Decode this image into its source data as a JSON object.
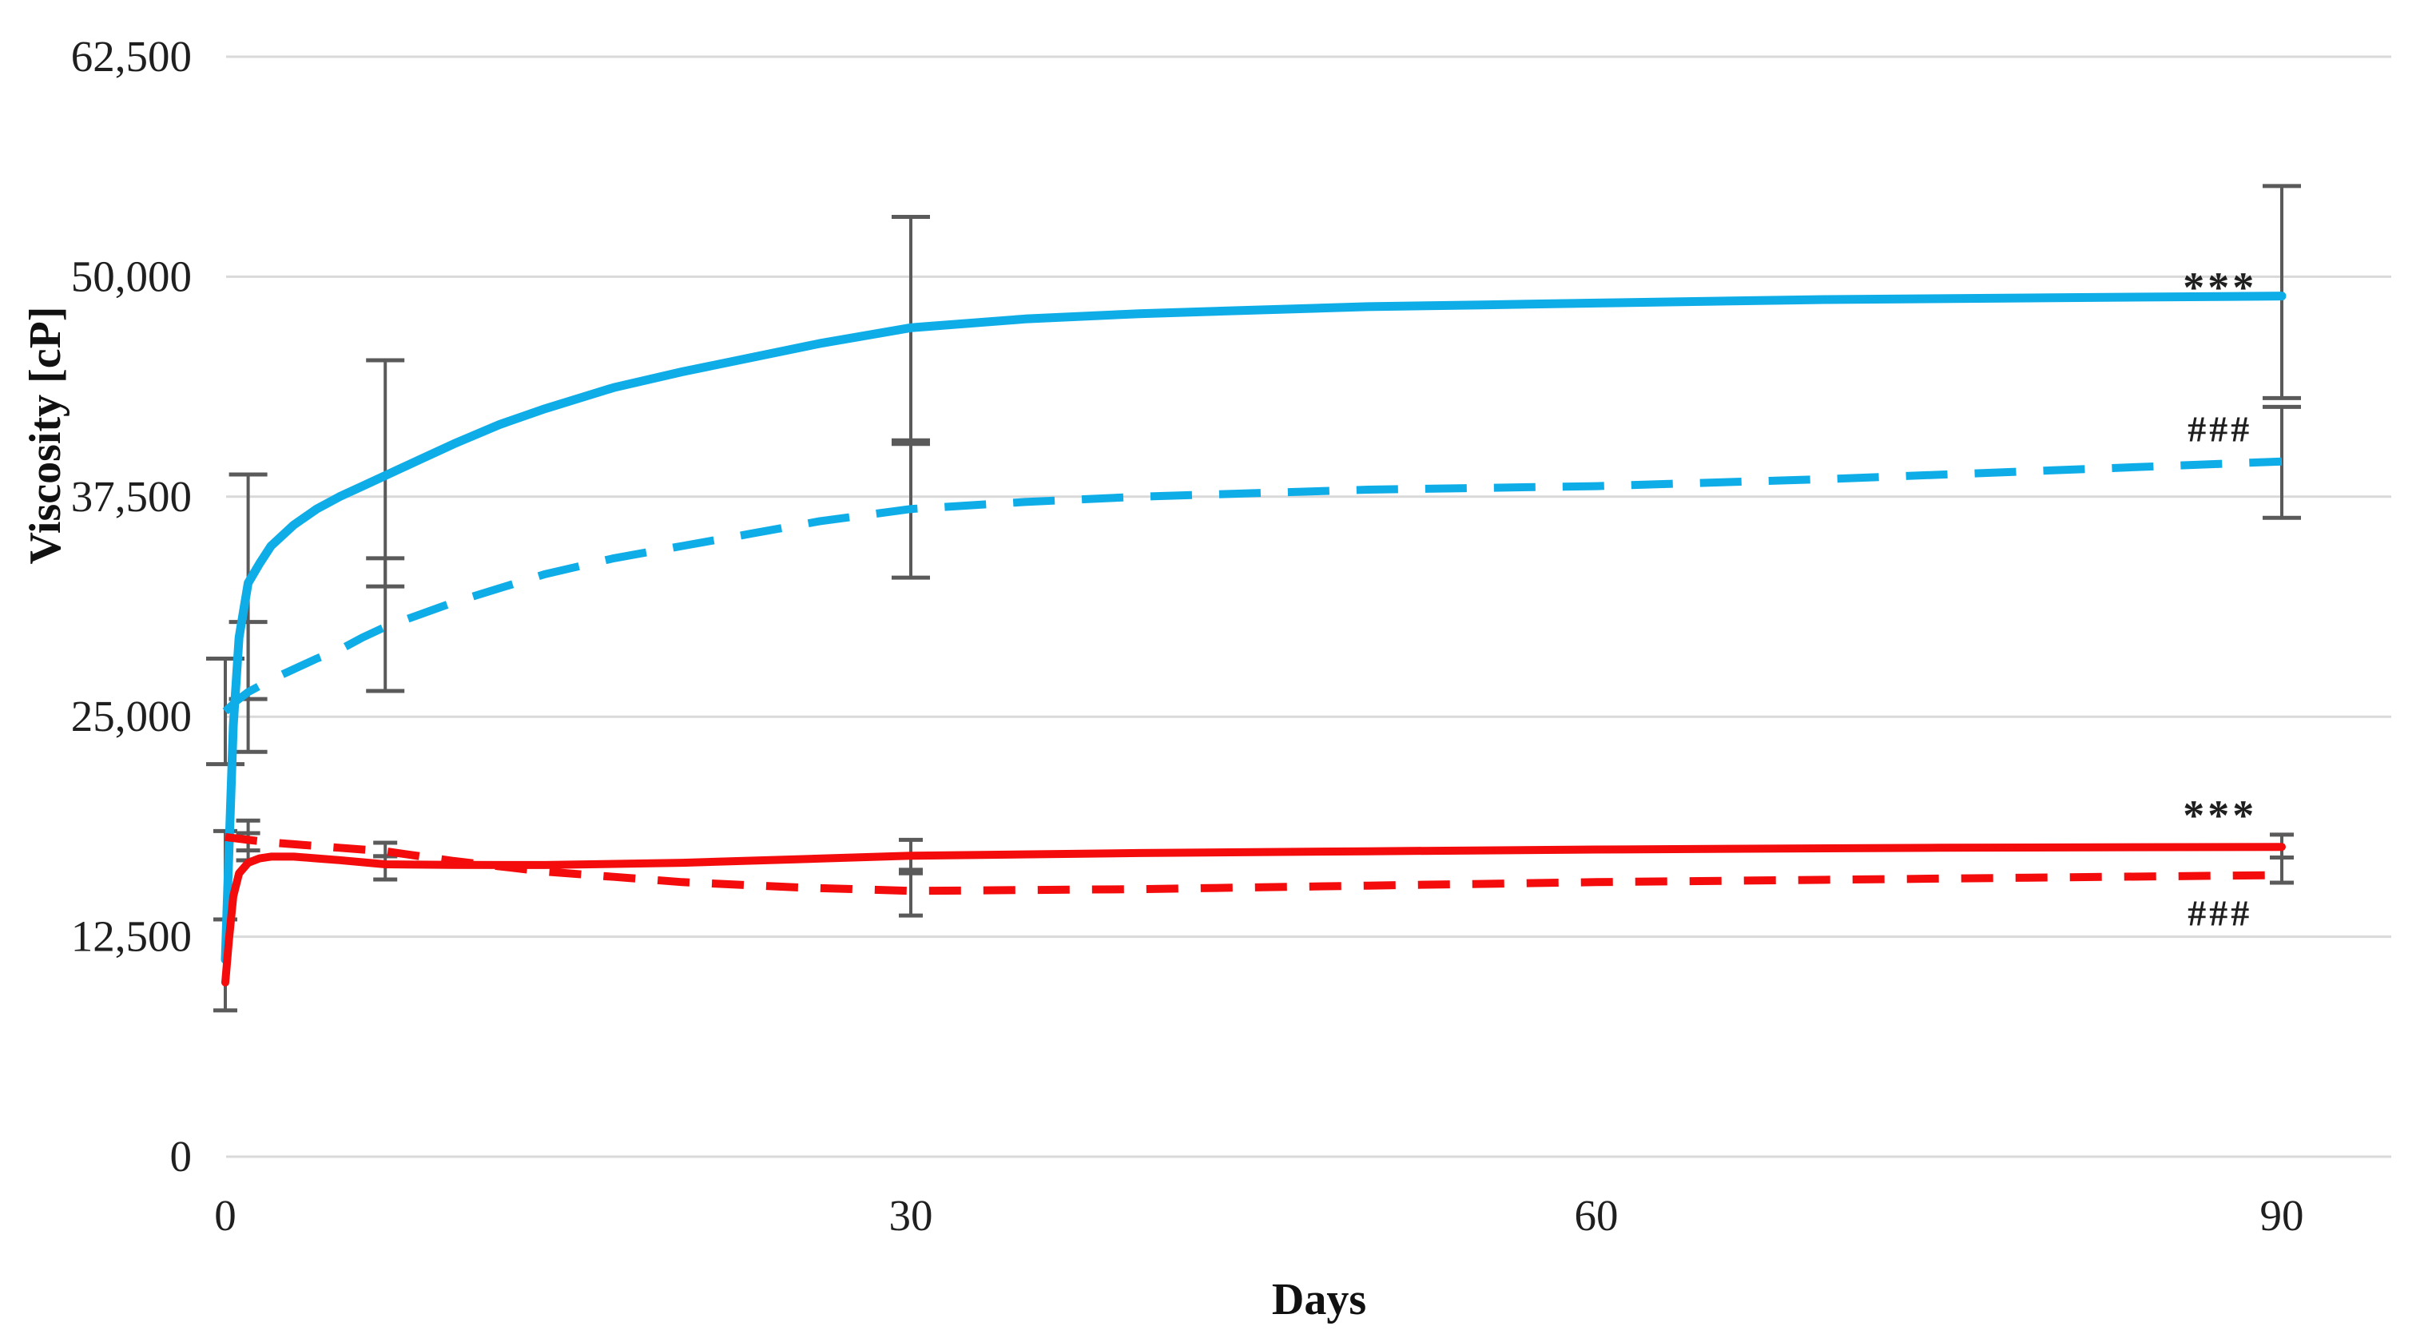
{
  "chart_data": {
    "type": "line",
    "title": "",
    "xlabel": "Days",
    "ylabel": "Viscosity [cP]",
    "xlim": [
      0,
      94.5
    ],
    "ylim": [
      0,
      62500
    ],
    "x_ticks": [
      0,
      30,
      60,
      90
    ],
    "y_ticks": [
      0,
      12500,
      25000,
      37500,
      50000,
      62500
    ],
    "y_tick_labels": [
      "0",
      "12,500",
      "25,000",
      "37,500",
      "50,000",
      "62,500"
    ],
    "grid": "horizontal-only",
    "legend": "none",
    "colors": {
      "blue_series": "#0FADE8",
      "red_series": "#F40C0C",
      "error_bar": "#5A5A5A",
      "gridline": "#D9D9D9",
      "text": "#1F1F1F"
    },
    "series": [
      {
        "id": "blue-solid",
        "label": "blue solid line",
        "color": "#0FADE8",
        "line_style": "solid",
        "stroke_width": 11,
        "error_cap_half": 24,
        "x": [
          0,
          0.15,
          0.35,
          0.6,
          1,
          1.5,
          2,
          3,
          4,
          5,
          6,
          7,
          8.5,
          10,
          12,
          14,
          17,
          20,
          23,
          26,
          30,
          35,
          40,
          45,
          50,
          55,
          60,
          70,
          80,
          90
        ],
        "y": [
          11200,
          17000,
          24500,
          29500,
          32600,
          33700,
          34700,
          35900,
          36800,
          37500,
          38100,
          38700,
          39600,
          40500,
          41600,
          42500,
          43700,
          44600,
          45400,
          46200,
          47100,
          47600,
          47900,
          48100,
          48300,
          48400,
          48500,
          48700,
          48800,
          48900
        ]
      },
      {
        "id": "blue-dashed",
        "label": "blue dashed line",
        "color": "#0FADE8",
        "line_style": "dashed",
        "stroke_width": 10,
        "error_cap_half": 24,
        "x": [
          0,
          0.5,
          1,
          2,
          3,
          4,
          5,
          6,
          7,
          8.5,
          10,
          12,
          14,
          17,
          20,
          23,
          26,
          30,
          35,
          40,
          45,
          50,
          55,
          60,
          70,
          80,
          90
        ],
        "y": [
          25300,
          25900,
          26400,
          27100,
          27700,
          28300,
          28800,
          29500,
          30100,
          30800,
          31500,
          32300,
          33100,
          34000,
          34700,
          35400,
          36100,
          36800,
          37200,
          37500,
          37700,
          37900,
          38000,
          38100,
          38500,
          39000,
          39500
        ]
      },
      {
        "id": "red-solid",
        "label": "red solid line",
        "color": "#F40C0C",
        "line_style": "solid",
        "stroke_width": 10,
        "error_cap_half": 15,
        "x": [
          0,
          0.15,
          0.35,
          0.6,
          1,
          1.5,
          2,
          3,
          4,
          5,
          7,
          10,
          14,
          20,
          25,
          30,
          40,
          50,
          60,
          75,
          90
        ],
        "y": [
          9900,
          12200,
          14800,
          16100,
          16700,
          16950,
          17050,
          17050,
          16950,
          16850,
          16610,
          16580,
          16570,
          16700,
          16900,
          17100,
          17250,
          17350,
          17450,
          17550,
          17600
        ]
      },
      {
        "id": "red-dashed",
        "label": "red dashed line",
        "color": "#F40C0C",
        "line_style": "dashed",
        "stroke_width": 10,
        "error_cap_half": 15,
        "x": [
          0,
          1,
          2,
          3,
          4,
          5,
          7,
          10,
          12,
          14,
          17,
          20,
          25,
          30,
          40,
          50,
          60,
          75,
          90
        ],
        "y": [
          18160,
          18000,
          17850,
          17750,
          17650,
          17550,
          17350,
          16800,
          16500,
          16200,
          15900,
          15600,
          15300,
          15100,
          15200,
          15400,
          15600,
          15800,
          16000
        ]
      }
    ],
    "error_bars": [
      {
        "series": "blue-dashed",
        "day": 0,
        "lo": 22300,
        "hi": 28300
      },
      {
        "series": "red-solid",
        "day": 0,
        "lo": 8310,
        "hi": 13480
      },
      {
        "series": "red-dashed",
        "day": 0,
        "lo": 13480,
        "hi": 18500
      },
      {
        "series": "blue-solid",
        "day": 1,
        "lo": 26000,
        "hi": 38760
      },
      {
        "series": "blue-dashed",
        "day": 1,
        "lo": 23000,
        "hi": 30380
      },
      {
        "series": "red-dashed",
        "day": 1,
        "lo": 17400,
        "hi": 19100
      },
      {
        "series": "red-solid",
        "day": 1,
        "lo": 16840,
        "hi": 18380
      },
      {
        "series": "blue-solid",
        "day": 7,
        "lo": 32400,
        "hi": 45250
      },
      {
        "series": "blue-dashed",
        "day": 7,
        "lo": 26460,
        "hi": 34000
      },
      {
        "series": "red-dashed",
        "day": 7,
        "lo": 17070,
        "hi": 17840
      },
      {
        "series": "red-solid",
        "day": 7,
        "lo": 15750,
        "hi": 17070
      },
      {
        "series": "blue-solid",
        "day": 30,
        "lo": 40700,
        "hi": 53400
      },
      {
        "series": "blue-dashed",
        "day": 30,
        "lo": 32900,
        "hi": 40500
      },
      {
        "series": "red-solid",
        "day": 30,
        "lo": 16300,
        "hi": 18000
      },
      {
        "series": "red-dashed",
        "day": 30,
        "lo": 13700,
        "hi": 16100
      },
      {
        "series": "blue-solid",
        "day": 90,
        "lo": 43100,
        "hi": 55150
      },
      {
        "series": "blue-dashed",
        "day": 90,
        "lo": 36300,
        "hi": 42600
      },
      {
        "series": "red-solid",
        "day": 90,
        "lo": 17000,
        "hi": 18300
      },
      {
        "series": "red-dashed",
        "day": 90,
        "lo": 15570,
        "hi": 17000
      }
    ],
    "annotations": [
      {
        "text": "***",
        "day": 87.3,
        "value": 50400,
        "font_size": 54,
        "attached_to": "blue-solid"
      },
      {
        "text": "###",
        "day": 87.3,
        "value": 41400,
        "font_size": 46,
        "attached_to": "blue-dashed"
      },
      {
        "text": "***",
        "day": 87.3,
        "value": 20400,
        "font_size": 54,
        "attached_to": "red-solid"
      },
      {
        "text": "###",
        "day": 87.3,
        "value": 13900,
        "font_size": 46,
        "attached_to": "red-dashed"
      }
    ]
  }
}
